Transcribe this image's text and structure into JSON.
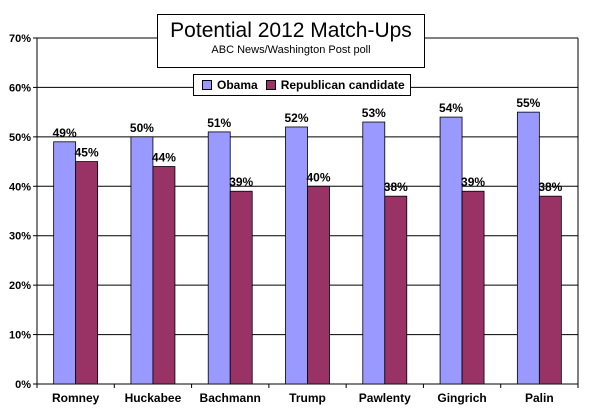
{
  "chart_data": {
    "type": "bar",
    "title": "Potential 2012 Match-Ups",
    "subtitle": "ABC News/Washington Post poll",
    "categories": [
      "Romney",
      "Huckabee",
      "Bachmann",
      "Trump",
      "Pawlenty",
      "Gingrich",
      "Palin"
    ],
    "series": [
      {
        "name": "Obama",
        "values": [
          49,
          50,
          51,
          52,
          53,
          54,
          55
        ],
        "labels": [
          "49%",
          "50%",
          "51%",
          "52%",
          "53%",
          "54%",
          "55%"
        ],
        "color": "#9999ff"
      },
      {
        "name": "Republican candidate",
        "values": [
          45,
          44,
          39,
          40,
          38,
          39,
          38
        ],
        "labels": [
          "45%",
          "44%",
          "39%",
          "40%",
          "38%",
          "39%",
          "38%"
        ],
        "color": "#993366"
      }
    ],
    "yticks": [
      "0%",
      "10%",
      "20%",
      "30%",
      "40%",
      "50%",
      "60%",
      "70%"
    ],
    "ylim": [
      0,
      70
    ],
    "grid": true,
    "legend_position": "top-center"
  }
}
